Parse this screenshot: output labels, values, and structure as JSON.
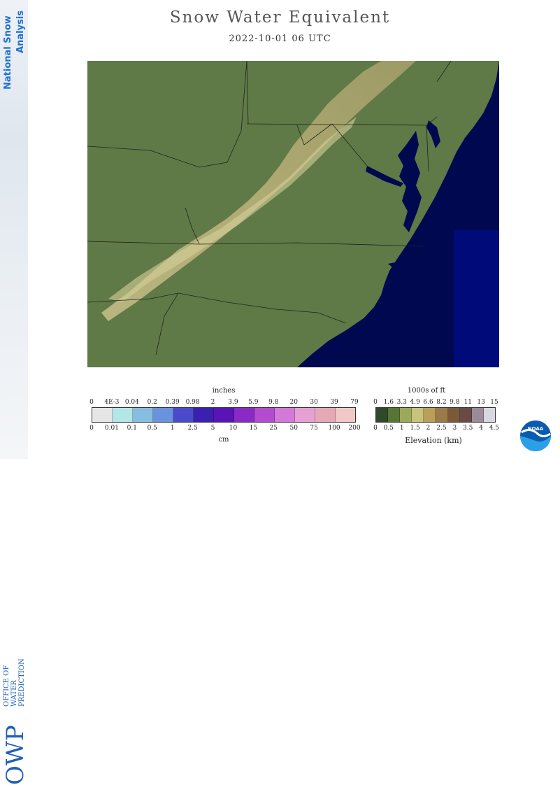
{
  "sidebar": {
    "title_line1": "National Snow",
    "title_line2": "Analysis",
    "logo_big": "OWP",
    "logo_line1": "OFFICE OF",
    "logo_line2": "WATER",
    "logo_line3": "PREDICTION"
  },
  "header": {
    "title": "Snow Water Equivalent",
    "datetime": "2022-10-01 06 UTC"
  },
  "swe_legend": {
    "top_unit": "inches",
    "top_ticks": [
      "0",
      "4E-3",
      "0.04",
      "0.2",
      "0.39",
      "0.98",
      "2",
      "3.9",
      "5.9",
      "9.8",
      "20",
      "30",
      "39",
      "79"
    ],
    "bottom_ticks": [
      "0",
      "0.01",
      "0.1",
      "0.5",
      "1",
      "2.5",
      "5",
      "10",
      "15",
      "25",
      "50",
      "75",
      "100",
      "200"
    ],
    "bottom_unit": "cm",
    "colors": [
      "#e6e6e6",
      "#b3e6e6",
      "#87bde0",
      "#6a93dd",
      "#4a4acb",
      "#3a1fb0",
      "#5a13b5",
      "#8a2ac4",
      "#b54bcf",
      "#d37ad8",
      "#e6a0d4",
      "#e4a9b4",
      "#f0c8c8"
    ]
  },
  "elev_legend": {
    "top_unit": "1000s of ft",
    "top_ticks": [
      "0",
      "1.6",
      "3.3",
      "4.9",
      "6.6",
      "8.2",
      "9.8",
      "11",
      "13",
      "15"
    ],
    "bottom_ticks": [
      "0",
      "0.5",
      "1",
      "1.5",
      "2",
      "2.5",
      "3",
      "3.5",
      "4",
      "4.5"
    ],
    "bottom_unit": "Elevation (km)",
    "colors": [
      "#2f4a2a",
      "#587536",
      "#9ea85a",
      "#c9c27a",
      "#b9a05a",
      "#9a7a48",
      "#7a5a3a",
      "#6a4a44",
      "#9a8a9a",
      "#d8d8e0"
    ]
  },
  "noaa_label": "NOAA"
}
